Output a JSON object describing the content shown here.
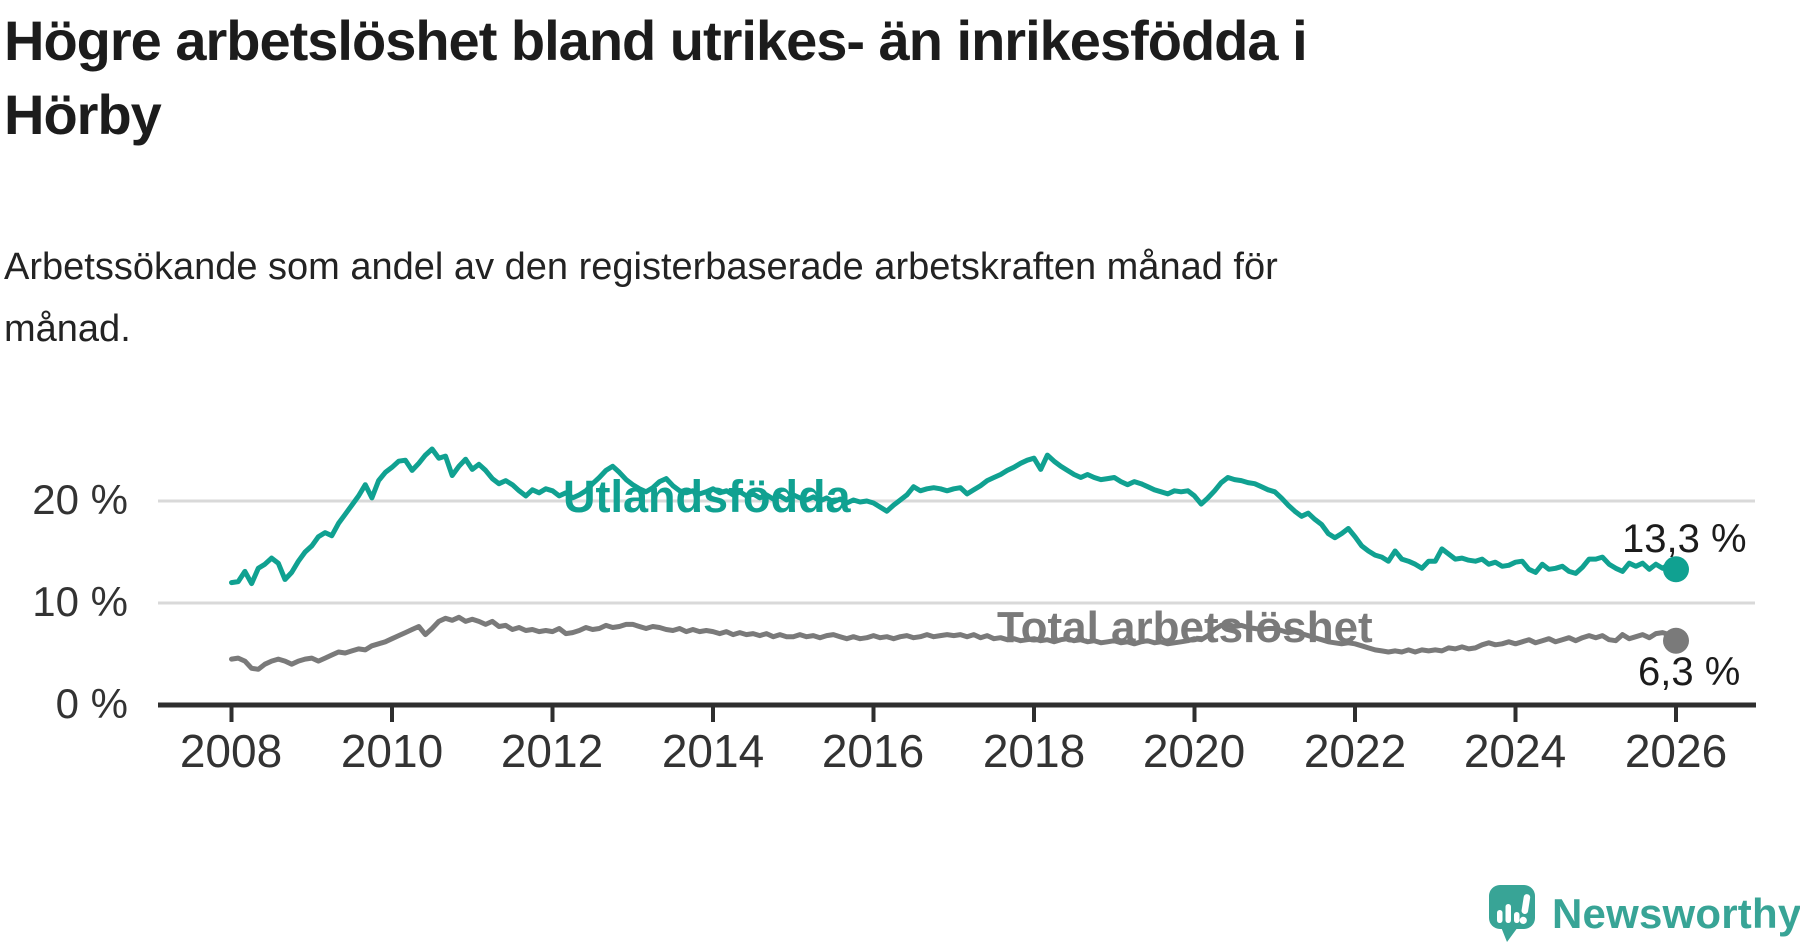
{
  "header": {
    "title_line1": "Högre arbetslöshet bland utrikes- än inrikesfödda i",
    "title_line2": "Hörby",
    "subtitle_line1": "Arbetssökande som andel av den registerbaserade arbetskraften månad för",
    "subtitle_line2": "månad."
  },
  "chart_data": {
    "type": "line",
    "title": "Högre arbetslöshet bland utrikes- än inrikesfödda i Hörby",
    "subtitle": "Arbetssökande som andel av den registerbaserade arbetskraften månad för månad.",
    "unit": "%",
    "x_start_year": 2008,
    "x_end_year": 2026,
    "points_per_year": 12,
    "x_tick_labels": [
      "2008",
      "2010",
      "2012",
      "2014",
      "2016",
      "2018",
      "2020",
      "2022",
      "2024",
      "2026"
    ],
    "y_ticks": [
      0,
      10,
      20
    ],
    "y_tick_labels": [
      "0 %",
      "10 %",
      "20 %"
    ],
    "ylim": [
      0,
      26
    ],
    "grid": "horizontal",
    "legend": "inline-labels",
    "axis_color": "#2e2e2e",
    "grid_color": "#d9d9d9",
    "series": [
      {
        "name": "Utlandsfödda",
        "color": "#10a191",
        "end_label": "13,3 %",
        "end_value": 13.3,
        "values": [
          12.0,
          12.1,
          13.1,
          11.9,
          13.4,
          13.8,
          14.4,
          13.9,
          12.3,
          13.0,
          14.1,
          15.0,
          15.6,
          16.5,
          16.9,
          16.6,
          17.8,
          18.7,
          19.6,
          20.5,
          21.6,
          20.3,
          22.0,
          22.8,
          23.3,
          23.9,
          24.0,
          23.0,
          23.7,
          24.5,
          25.1,
          24.2,
          24.4,
          22.5,
          23.4,
          24.1,
          23.1,
          23.6,
          23.0,
          22.2,
          21.7,
          22.0,
          21.6,
          21.0,
          20.5,
          21.1,
          20.8,
          21.2,
          21.0,
          20.5,
          20.8,
          20.3,
          20.6,
          21.0,
          21.7,
          22.3,
          23.0,
          23.4,
          22.8,
          22.1,
          21.6,
          21.2,
          20.9,
          21.3,
          21.9,
          22.2,
          21.5,
          21.0,
          20.8,
          21.0,
          20.7,
          20.9,
          21.2,
          20.8,
          21.0,
          20.6,
          20.9,
          20.5,
          20.7,
          20.3,
          20.6,
          20.2,
          20.5,
          20.1,
          20.6,
          20.3,
          20.1,
          20.4,
          20.0,
          20.3,
          19.9,
          20.2,
          19.8,
          20.1,
          19.9,
          20.0,
          19.8,
          19.4,
          19.0,
          19.6,
          20.1,
          20.6,
          21.4,
          21.0,
          21.2,
          21.3,
          21.2,
          21.0,
          21.2,
          21.3,
          20.7,
          21.1,
          21.5,
          22.0,
          22.3,
          22.6,
          23.0,
          23.3,
          23.7,
          24.0,
          24.2,
          23.1,
          24.5,
          23.9,
          23.4,
          23.0,
          22.6,
          22.3,
          22.6,
          22.3,
          22.1,
          22.2,
          22.3,
          21.9,
          21.6,
          21.9,
          21.7,
          21.4,
          21.1,
          20.9,
          20.7,
          21.0,
          20.9,
          21.0,
          20.5,
          19.7,
          20.3,
          21.0,
          21.8,
          22.3,
          22.1,
          22.0,
          21.8,
          21.7,
          21.4,
          21.1,
          20.9,
          20.3,
          19.6,
          19.0,
          18.5,
          18.8,
          18.2,
          17.7,
          16.8,
          16.4,
          16.8,
          17.3,
          16.5,
          15.6,
          15.1,
          14.7,
          14.5,
          14.1,
          15.1,
          14.3,
          14.1,
          13.8,
          13.4,
          14.1,
          14.1,
          15.3,
          14.8,
          14.3,
          14.4,
          14.2,
          14.1,
          14.3,
          13.8,
          14.0,
          13.6,
          13.7,
          14.0,
          14.1,
          13.3,
          13.0,
          13.8,
          13.3,
          13.4,
          13.6,
          13.1,
          12.9,
          13.5,
          14.3,
          14.3,
          14.5,
          13.8,
          13.4,
          13.1,
          13.9,
          13.6,
          13.9,
          13.3,
          13.8,
          13.4,
          13.8,
          13.3
        ]
      },
      {
        "name": "Total arbetslöshet",
        "color": "#7a7a7a",
        "end_label": "6,3 %",
        "end_value": 6.3,
        "values": [
          4.5,
          4.6,
          4.3,
          3.6,
          3.5,
          4.0,
          4.3,
          4.5,
          4.3,
          4.0,
          4.3,
          4.5,
          4.6,
          4.3,
          4.6,
          4.9,
          5.2,
          5.1,
          5.3,
          5.5,
          5.4,
          5.8,
          6.0,
          6.2,
          6.5,
          6.8,
          7.1,
          7.4,
          7.7,
          6.9,
          7.5,
          8.2,
          8.5,
          8.3,
          8.6,
          8.2,
          8.4,
          8.2,
          7.9,
          8.2,
          7.7,
          7.8,
          7.4,
          7.6,
          7.3,
          7.4,
          7.2,
          7.3,
          7.2,
          7.5,
          7.0,
          7.1,
          7.3,
          7.6,
          7.4,
          7.5,
          7.8,
          7.6,
          7.7,
          7.9,
          7.9,
          7.7,
          7.5,
          7.7,
          7.6,
          7.4,
          7.3,
          7.5,
          7.2,
          7.4,
          7.2,
          7.3,
          7.2,
          7.0,
          7.2,
          6.9,
          7.1,
          6.9,
          7.0,
          6.8,
          7.0,
          6.7,
          6.9,
          6.7,
          6.7,
          6.9,
          6.7,
          6.8,
          6.6,
          6.8,
          6.9,
          6.7,
          6.5,
          6.7,
          6.5,
          6.6,
          6.8,
          6.6,
          6.7,
          6.5,
          6.7,
          6.8,
          6.6,
          6.7,
          6.9,
          6.7,
          6.8,
          6.9,
          6.8,
          6.9,
          6.7,
          6.9,
          6.6,
          6.8,
          6.5,
          6.6,
          6.4,
          6.5,
          6.3,
          6.4,
          6.5,
          6.3,
          6.4,
          6.2,
          6.4,
          6.5,
          6.3,
          6.4,
          6.2,
          6.3,
          6.1,
          6.2,
          6.3,
          6.1,
          6.2,
          6.0,
          6.2,
          6.3,
          6.1,
          6.2,
          6.0,
          6.1,
          6.2,
          6.3,
          6.5,
          6.4,
          6.8,
          7.4,
          7.8,
          7.9,
          7.7,
          7.8,
          7.6,
          7.5,
          7.4,
          7.5,
          7.5,
          7.3,
          7.1,
          7.2,
          7.0,
          6.8,
          6.6,
          6.4,
          6.2,
          6.1,
          6.0,
          6.1,
          6.0,
          5.8,
          5.6,
          5.4,
          5.3,
          5.2,
          5.3,
          5.2,
          5.4,
          5.2,
          5.4,
          5.3,
          5.4,
          5.3,
          5.6,
          5.5,
          5.7,
          5.5,
          5.6,
          5.9,
          6.1,
          5.9,
          6.0,
          6.2,
          6.0,
          6.2,
          6.4,
          6.1,
          6.3,
          6.5,
          6.2,
          6.4,
          6.6,
          6.3,
          6.6,
          6.8,
          6.6,
          6.8,
          6.4,
          6.3,
          6.9,
          6.5,
          6.7,
          6.9,
          6.6,
          7.0,
          7.1,
          6.9,
          6.3
        ]
      }
    ]
  },
  "footer": {
    "brand": "Newsworthy",
    "brand_color": "#38a496"
  }
}
